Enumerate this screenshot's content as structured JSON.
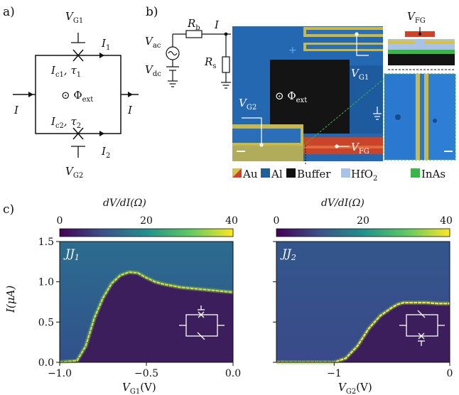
{
  "panels": {
    "a": {
      "label": "a)",
      "vg1": "V",
      "vg1_sub": "G1",
      "vg2": "V",
      "vg2_sub": "G2",
      "i1": "I",
      "i1_sub": "1",
      "i2": "I",
      "i2_sub": "2",
      "ic1": "I",
      "ic1_sub": "c1",
      "tau1": ", τ",
      "tau1_sub": "1",
      "ic2": "I",
      "ic2_sub": "c2",
      "tau2": ", τ",
      "tau2_sub": "2",
      "phi": "⊙ Φ",
      "phi_sub": "ext",
      "i_left": "I",
      "i_right": "I"
    },
    "b": {
      "label": "b)",
      "vac": "V",
      "vac_sub": "ac",
      "vdc": "V",
      "vdc_sub": "dc",
      "rb": "R",
      "rb_sub": "b",
      "rs": "R",
      "rs_sub": "s",
      "i": "I",
      "vg1": "V",
      "vg1_sub": "G1",
      "vg2": "V",
      "vg2_sub": "G2",
      "vfg": "V",
      "vfg_sub": "FG",
      "vfg_top": "V",
      "vfg_top_sub": "FG",
      "phi": "⊙ Φ",
      "phi_sub": "ext",
      "plus": "+",
      "legend": [
        {
          "label": "Au",
          "color": "#d8c24a"
        },
        {
          "label": "Al",
          "color": "#1f5f9a"
        },
        {
          "label": "Buffer",
          "color": "#111111"
        },
        {
          "label": "HfO",
          "sub": "2",
          "color": "#a9c3e6"
        },
        {
          "label": "InAs",
          "color": "#3bb54a"
        }
      ]
    },
    "c": {
      "label": "c)"
    }
  },
  "chart_data": [
    {
      "type": "heatmap",
      "title": "JJ",
      "title_sub": "1",
      "colorbar_label": "dV/dI(Ω)",
      "colorbar_ticks": [
        0,
        20,
        40
      ],
      "colorbar_range": [
        0,
        40
      ],
      "xlabel": "V",
      "xlabel_sub": "G1",
      "xlabel_unit": "(V)",
      "ylabel": "I(μA)",
      "xlim": [
        -1.0,
        0.0
      ],
      "ylim": [
        0.0,
        1.5
      ],
      "xticks": [
        "−1.0",
        "−0.5",
        "0.0"
      ],
      "xtick_values": [
        -1.0,
        -0.5,
        0.0
      ],
      "yticks": [
        "0.0",
        "0.5",
        "1.0",
        "1.5"
      ],
      "ytick_values": [
        0.0,
        0.5,
        1.0,
        1.5
      ],
      "switching_current": {
        "x": [
          -1.0,
          -0.9,
          -0.85,
          -0.8,
          -0.75,
          -0.7,
          -0.65,
          -0.6,
          -0.55,
          -0.5,
          -0.45,
          -0.4,
          -0.35,
          -0.3,
          -0.25,
          -0.2,
          -0.15,
          -0.1,
          -0.05,
          0.0
        ],
        "y": [
          0.0,
          0.02,
          0.2,
          0.55,
          0.8,
          0.98,
          1.08,
          1.12,
          1.11,
          1.05,
          1.0,
          0.97,
          0.95,
          0.93,
          0.92,
          0.91,
          0.9,
          0.89,
          0.88,
          0.87
        ]
      }
    },
    {
      "type": "heatmap",
      "title": "JJ",
      "title_sub": "2",
      "colorbar_label": "dV/dI(Ω)",
      "colorbar_ticks": [
        0,
        20,
        40
      ],
      "colorbar_range": [
        0,
        40
      ],
      "xlabel": "V",
      "xlabel_sub": "G2",
      "xlabel_unit": "(V)",
      "xlim": [
        -1.5,
        0.0
      ],
      "ylim": [
        0.0,
        1.5
      ],
      "xticks": [
        "−1",
        "0"
      ],
      "xtick_values": [
        -1.0,
        0.0
      ],
      "yticks": [],
      "ytick_values": [
        0.0,
        0.5,
        1.0,
        1.5
      ],
      "switching_current": {
        "x": [
          -1.5,
          -1.0,
          -0.9,
          -0.8,
          -0.7,
          -0.6,
          -0.5,
          -0.45,
          -0.4,
          -0.3,
          -0.2,
          -0.1,
          0.0
        ],
        "y": [
          0.0,
          0.0,
          0.05,
          0.2,
          0.42,
          0.58,
          0.68,
          0.72,
          0.74,
          0.74,
          0.74,
          0.73,
          0.73
        ]
      }
    }
  ]
}
